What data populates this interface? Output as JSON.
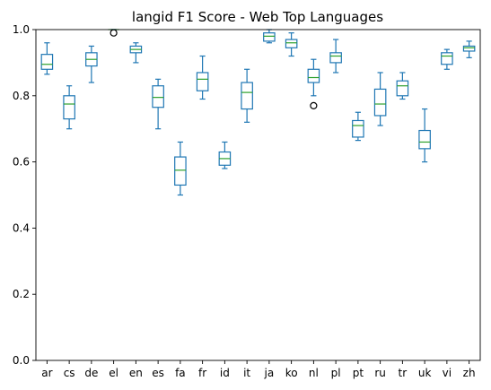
{
  "chart_data": {
    "type": "box",
    "title": "langid F1 Score - Web Top Languages",
    "xlabel": "",
    "ylabel": "",
    "ylim": [
      0.0,
      1.0
    ],
    "yticks": [
      0.0,
      0.2,
      0.4,
      0.6,
      0.8,
      1.0
    ],
    "ytick_labels": [
      "0.0",
      "0.2",
      "0.4",
      "0.6",
      "0.8",
      "1.0"
    ],
    "grid": false,
    "legend": "none",
    "categories": [
      "ar",
      "cs",
      "de",
      "el",
      "en",
      "es",
      "fa",
      "fr",
      "id",
      "it",
      "ja",
      "ko",
      "nl",
      "pl",
      "pt",
      "ru",
      "tr",
      "uk",
      "vi",
      "zh"
    ],
    "boxes": [
      {
        "label": "ar",
        "whislo": 0.865,
        "q1": 0.88,
        "med": 0.895,
        "q3": 0.925,
        "whishi": 0.96,
        "fliers": []
      },
      {
        "label": "cs",
        "whislo": 0.7,
        "q1": 0.73,
        "med": 0.775,
        "q3": 0.8,
        "whishi": 0.83,
        "fliers": []
      },
      {
        "label": "de",
        "whislo": 0.84,
        "q1": 0.89,
        "med": 0.91,
        "q3": 0.93,
        "whishi": 0.95,
        "fliers": []
      },
      {
        "label": "el",
        "whislo": 1.0,
        "q1": 1.0,
        "med": 1.0,
        "q3": 1.0,
        "whishi": 1.0,
        "fliers": [
          0.99
        ]
      },
      {
        "label": "en",
        "whislo": 0.9,
        "q1": 0.93,
        "med": 0.94,
        "q3": 0.95,
        "whishi": 0.96,
        "fliers": []
      },
      {
        "label": "es",
        "whislo": 0.7,
        "q1": 0.765,
        "med": 0.795,
        "q3": 0.83,
        "whishi": 0.85,
        "fliers": []
      },
      {
        "label": "fa",
        "whislo": 0.5,
        "q1": 0.53,
        "med": 0.575,
        "q3": 0.615,
        "whishi": 0.66,
        "fliers": []
      },
      {
        "label": "fr",
        "whislo": 0.79,
        "q1": 0.815,
        "med": 0.85,
        "q3": 0.87,
        "whishi": 0.92,
        "fliers": []
      },
      {
        "label": "id",
        "whislo": 0.58,
        "q1": 0.59,
        "med": 0.61,
        "q3": 0.63,
        "whishi": 0.66,
        "fliers": []
      },
      {
        "label": "it",
        "whislo": 0.72,
        "q1": 0.76,
        "med": 0.81,
        "q3": 0.84,
        "whishi": 0.88,
        "fliers": []
      },
      {
        "label": "ja",
        "whislo": 0.96,
        "q1": 0.965,
        "med": 0.98,
        "q3": 0.99,
        "whishi": 1.0,
        "fliers": []
      },
      {
        "label": "ko",
        "whislo": 0.92,
        "q1": 0.945,
        "med": 0.96,
        "q3": 0.97,
        "whishi": 0.99,
        "fliers": []
      },
      {
        "label": "nl",
        "whislo": 0.8,
        "q1": 0.84,
        "med": 0.855,
        "q3": 0.88,
        "whishi": 0.91,
        "fliers": [
          0.77
        ]
      },
      {
        "label": "pl",
        "whislo": 0.87,
        "q1": 0.9,
        "med": 0.92,
        "q3": 0.93,
        "whishi": 0.97,
        "fliers": []
      },
      {
        "label": "pt",
        "whislo": 0.665,
        "q1": 0.675,
        "med": 0.71,
        "q3": 0.725,
        "whishi": 0.75,
        "fliers": []
      },
      {
        "label": "ru",
        "whislo": 0.71,
        "q1": 0.74,
        "med": 0.775,
        "q3": 0.82,
        "whishi": 0.87,
        "fliers": []
      },
      {
        "label": "tr",
        "whislo": 0.79,
        "q1": 0.8,
        "med": 0.83,
        "q3": 0.845,
        "whishi": 0.87,
        "fliers": []
      },
      {
        "label": "uk",
        "whislo": 0.6,
        "q1": 0.64,
        "med": 0.66,
        "q3": 0.695,
        "whishi": 0.76,
        "fliers": []
      },
      {
        "label": "vi",
        "whislo": 0.88,
        "q1": 0.895,
        "med": 0.92,
        "q3": 0.93,
        "whishi": 0.94,
        "fliers": []
      },
      {
        "label": "zh",
        "whislo": 0.915,
        "q1": 0.935,
        "med": 0.945,
        "q3": 0.95,
        "whishi": 0.965,
        "fliers": []
      }
    ],
    "colors": {
      "box": "#1f77b4",
      "median": "#2ca02c",
      "flier": "#000000"
    }
  }
}
